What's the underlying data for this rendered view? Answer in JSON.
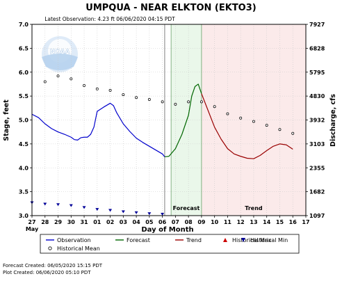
{
  "chart_data": {
    "type": "line",
    "title": "UMPQUA - NEAR ELKTON  (EKTO3)",
    "subtitle": "Latest Observation: 4.23 ft 06/06/2020 04:15 PDT",
    "xlabel": "Day of Month",
    "ylabel": "Stage, feet",
    "y2label": "Discharge, cfs",
    "month_label": "May",
    "ylim": [
      3.0,
      7.0
    ],
    "xlim": [
      27,
      17
    ],
    "x_ticks": [
      "27",
      "28",
      "29",
      "30",
      "31",
      "01",
      "02",
      "03",
      "04",
      "05",
      "06",
      "07",
      "08",
      "09",
      "10",
      "11",
      "12",
      "13",
      "14",
      "15",
      "16",
      "17"
    ],
    "y_ticks": [
      "3.0",
      "3.5",
      "4.0",
      "4.5",
      "5.0",
      "5.5",
      "6.0",
      "6.5",
      "7.0"
    ],
    "y2_ticks": [
      "1097",
      "1682",
      "2355",
      "3103",
      "3932",
      "4830",
      "5795",
      "6828",
      "7927"
    ],
    "grid": true,
    "regions": [
      {
        "label": "Forecast",
        "start": "06/06 16:00",
        "end": "06/09 00:00",
        "color": "#eaf7ea"
      },
      {
        "label": "Trend",
        "start": "06/09 00:00",
        "end": "06/17 00:00",
        "color": "#fbeaea"
      }
    ],
    "series": [
      {
        "name": "Observation",
        "color": "#0000cc",
        "points": [
          [
            "05/27 00:00",
            5.12
          ],
          [
            "05/27 12:00",
            5.05
          ],
          [
            "05/28 00:00",
            4.92
          ],
          [
            "05/28 12:00",
            4.82
          ],
          [
            "05/29 00:00",
            4.75
          ],
          [
            "05/29 12:00",
            4.7
          ],
          [
            "05/30 00:00",
            4.64
          ],
          [
            "05/30 06:00",
            4.59
          ],
          [
            "05/30 12:00",
            4.58
          ],
          [
            "05/30 18:00",
            4.63
          ],
          [
            "05/31 00:00",
            4.64
          ],
          [
            "05/31 06:00",
            4.64
          ],
          [
            "05/31 12:00",
            4.7
          ],
          [
            "05/31 18:00",
            4.85
          ],
          [
            "06/01 00:00",
            5.18
          ],
          [
            "06/01 12:00",
            5.27
          ],
          [
            "06/02 00:00",
            5.35
          ],
          [
            "06/02 06:00",
            5.3
          ],
          [
            "06/02 12:00",
            5.15
          ],
          [
            "06/03 00:00",
            4.92
          ],
          [
            "06/03 12:00",
            4.76
          ],
          [
            "06/04 00:00",
            4.62
          ],
          [
            "06/04 12:00",
            4.53
          ],
          [
            "06/05 00:00",
            4.45
          ],
          [
            "06/05 12:00",
            4.37
          ],
          [
            "06/06 00:00",
            4.29
          ],
          [
            "06/06 04:15",
            4.23
          ]
        ]
      },
      {
        "name": "Forecast",
        "color": "#006600",
        "points": [
          [
            "06/06 04:15",
            4.23
          ],
          [
            "06/06 12:00",
            4.24
          ],
          [
            "06/07 00:00",
            4.4
          ],
          [
            "06/07 12:00",
            4.7
          ],
          [
            "06/08 00:00",
            5.1
          ],
          [
            "06/08 06:00",
            5.5
          ],
          [
            "06/08 12:00",
            5.7
          ],
          [
            "06/08 18:00",
            5.75
          ],
          [
            "06/09 00:00",
            5.55
          ]
        ]
      },
      {
        "name": "Trend",
        "color": "#990000",
        "points": [
          [
            "06/09 00:00",
            5.55
          ],
          [
            "06/09 12:00",
            5.2
          ],
          [
            "06/10 00:00",
            4.85
          ],
          [
            "06/10 12:00",
            4.6
          ],
          [
            "06/11 00:00",
            4.4
          ],
          [
            "06/11 12:00",
            4.29
          ],
          [
            "06/12 00:00",
            4.24
          ],
          [
            "06/12 12:00",
            4.2
          ],
          [
            "06/13 00:00",
            4.19
          ],
          [
            "06/13 12:00",
            4.26
          ],
          [
            "06/14 00:00",
            4.36
          ],
          [
            "06/14 12:00",
            4.45
          ],
          [
            "06/15 00:00",
            4.5
          ],
          [
            "06/15 12:00",
            4.48
          ],
          [
            "06/16 00:00",
            4.39
          ]
        ]
      },
      {
        "name": "Historical Max",
        "color": "#cc0000",
        "points": []
      },
      {
        "name": "Historical Min",
        "color": "#000099",
        "points": [
          [
            "05/27 00:00",
            3.27
          ],
          [
            "05/28 00:00",
            3.24
          ],
          [
            "05/29 00:00",
            3.23
          ],
          [
            "05/30 00:00",
            3.21
          ],
          [
            "05/31 00:00",
            3.17
          ],
          [
            "06/01 00:00",
            3.13
          ],
          [
            "06/02 00:00",
            3.11
          ],
          [
            "06/03 00:00",
            3.08
          ],
          [
            "06/04 00:00",
            3.06
          ],
          [
            "06/05 00:00",
            3.04
          ],
          [
            "06/06 00:00",
            3.03
          ]
        ]
      },
      {
        "name": "Historical Mean",
        "color": "#000000",
        "points": [
          [
            "05/28 00:00",
            5.8
          ],
          [
            "05/29 00:00",
            5.92
          ],
          [
            "05/30 00:00",
            5.86
          ],
          [
            "05/31 00:00",
            5.72
          ],
          [
            "06/01 00:00",
            5.65
          ],
          [
            "06/02 00:00",
            5.62
          ],
          [
            "06/03 00:00",
            5.53
          ],
          [
            "06/04 00:00",
            5.47
          ],
          [
            "06/05 00:00",
            5.43
          ],
          [
            "06/06 00:00",
            5.38
          ],
          [
            "06/07 00:00",
            5.33
          ],
          [
            "06/08 00:00",
            5.38
          ],
          [
            "06/09 00:00",
            5.38
          ],
          [
            "06/10 00:00",
            5.28
          ],
          [
            "06/11 00:00",
            5.13
          ],
          [
            "06/12 00:00",
            5.04
          ],
          [
            "06/13 00:00",
            4.97
          ],
          [
            "06/14 00:00",
            4.89
          ],
          [
            "06/15 00:00",
            4.8
          ],
          [
            "06/16 00:00",
            4.72
          ]
        ]
      }
    ],
    "legend": {
      "placement": "bottom",
      "items": [
        {
          "label": "Observation",
          "symbol": "line",
          "color": "#0000cc"
        },
        {
          "label": "Forecast",
          "symbol": "line",
          "color": "#006600"
        },
        {
          "label": "Trend",
          "symbol": "line",
          "color": "#990000"
        },
        {
          "label": "Historical Max",
          "symbol": "triangle-up",
          "color": "#cc0000"
        },
        {
          "label": "Historical Min",
          "symbol": "triangle-down",
          "color": "#000099"
        },
        {
          "label": "Historical Mean",
          "symbol": "circle",
          "color": "#000000"
        }
      ]
    }
  },
  "footer": {
    "forecast_created": "Forecast Created: 06/05/2020 15:15 PDT",
    "plot_created": "Plot Created: 06/06/2020 05:10 PDT"
  },
  "logo": {
    "text": "NOAA"
  }
}
